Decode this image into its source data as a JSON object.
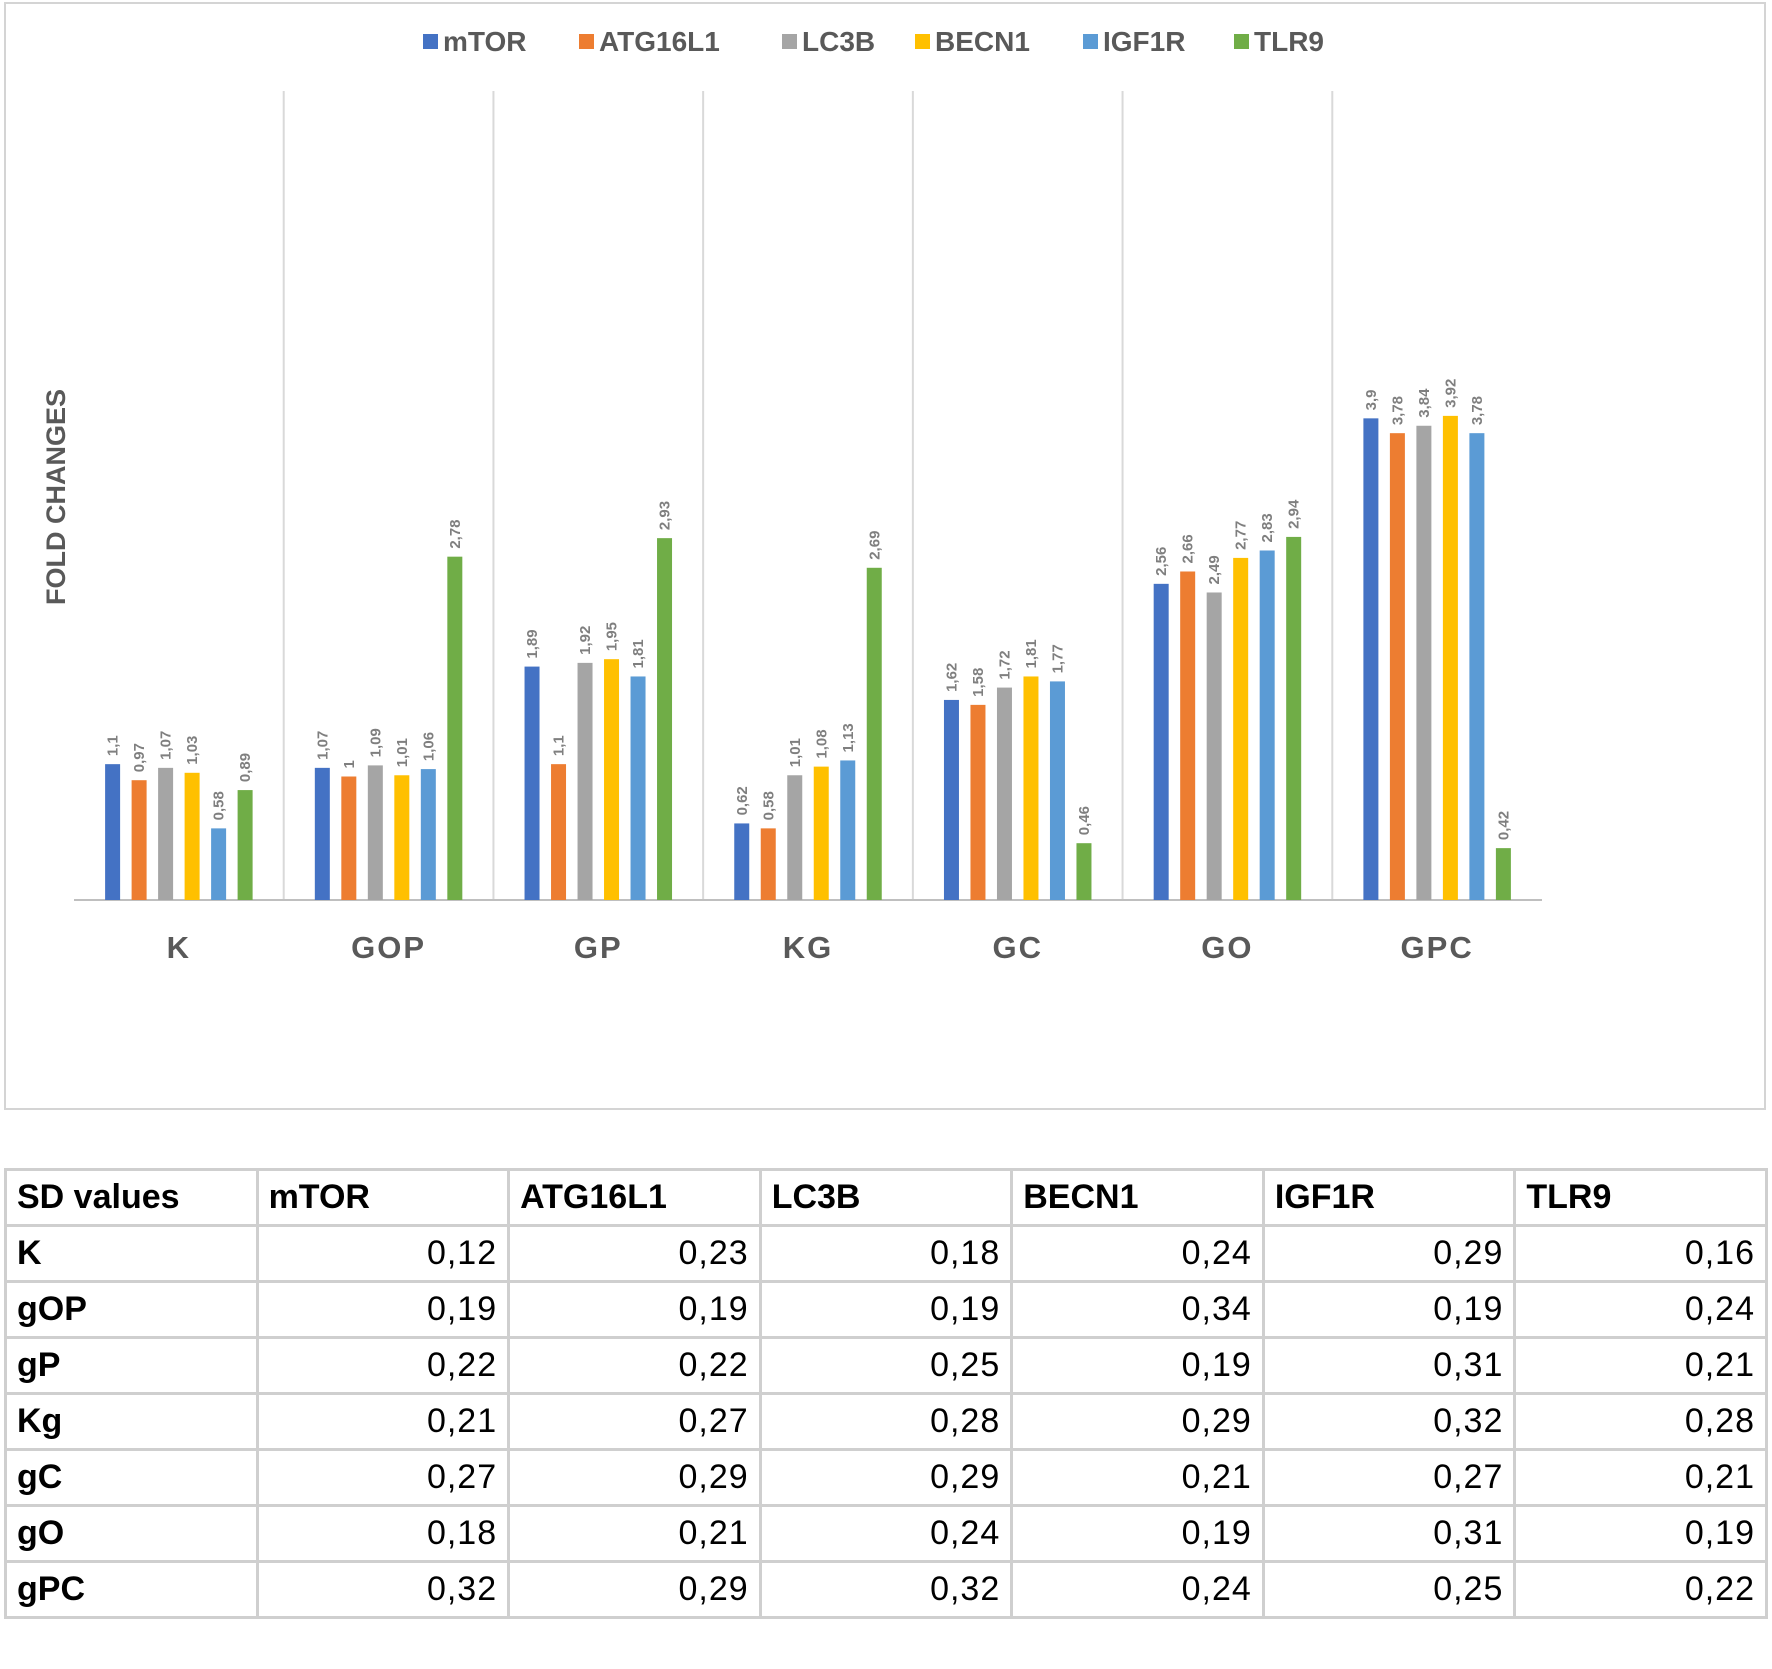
{
  "chart_data": {
    "type": "bar",
    "title": "",
    "xlabel": "",
    "ylabel": "FOLD CHANGES",
    "ylim": [
      0,
      4.6
    ],
    "grid": "vertical separators between categories",
    "legend_position": "top",
    "categories": [
      "K",
      "GOP",
      "GP",
      "KG",
      "GC",
      "GO",
      "GPC"
    ],
    "series": [
      {
        "name": "mTOR",
        "color": "#4472c4",
        "values": [
          1.1,
          1.07,
          1.89,
          0.62,
          1.62,
          2.56,
          3.9
        ],
        "labels": [
          "1,1",
          "1,07",
          "1,89",
          "0,62",
          "1,62",
          "2,56",
          "3,9"
        ]
      },
      {
        "name": "ATG16L1",
        "color": "#ed7d31",
        "values": [
          0.97,
          1,
          1.1,
          0.58,
          1.58,
          2.66,
          3.78
        ],
        "labels": [
          "0,97",
          "1",
          "1,1",
          "0,58",
          "1,58",
          "2,66",
          "3,78"
        ]
      },
      {
        "name": "LC3B",
        "color": "#a5a5a5",
        "values": [
          1.07,
          1.09,
          1.92,
          1.01,
          1.72,
          2.49,
          3.84
        ],
        "labels": [
          "1,07",
          "1,09",
          "1,92",
          "1,01",
          "1,72",
          "2,49",
          "3,84"
        ]
      },
      {
        "name": "BECN1",
        "color": "#ffc000",
        "values": [
          1.03,
          1.01,
          1.95,
          1.08,
          1.81,
          2.77,
          3.92
        ],
        "labels": [
          "1,03",
          "1,01",
          "1,95",
          "1,08",
          "1,81",
          "2,77",
          "3,92"
        ]
      },
      {
        "name": "IGF1R",
        "color": "#5b9bd5",
        "values": [
          0.58,
          1.06,
          1.81,
          1.13,
          1.77,
          2.83,
          3.78
        ],
        "labels": [
          "0,58",
          "1,06",
          "1,81",
          "1,13",
          "1,77",
          "2,83",
          "3,78"
        ]
      },
      {
        "name": "TLR9",
        "color": "#70ad47",
        "values": [
          0.89,
          2.78,
          2.93,
          2.69,
          0.46,
          2.94,
          0.42
        ],
        "labels": [
          "0,89",
          "2,78",
          "2,93",
          "2,69",
          "0,46",
          "2,94",
          "0,42"
        ]
      }
    ]
  },
  "sd_table": {
    "header": [
      "SD values",
      "mTOR",
      "ATG16L1",
      "LC3B",
      "BECN1",
      "IGF1R",
      "TLR9"
    ],
    "rows": [
      {
        "label": "K",
        "values": [
          "0,12",
          "0,23",
          "0,18",
          "0,24",
          "0,29",
          "0,16"
        ]
      },
      {
        "label": "gOP",
        "values": [
          "0,19",
          "0,19",
          "0,19",
          "0,34",
          "0,19",
          "0,24"
        ]
      },
      {
        "label": "gP",
        "values": [
          "0,22",
          "0,22",
          "0,25",
          "0,19",
          "0,31",
          "0,21"
        ]
      },
      {
        "label": "Kg",
        "values": [
          "0,21",
          "0,27",
          "0,28",
          "0,29",
          "0,32",
          "0,28"
        ]
      },
      {
        "label": "gC",
        "values": [
          "0,27",
          "0,29",
          "0,29",
          "0,21",
          "0,27",
          "0,21"
        ]
      },
      {
        "label": "gO",
        "values": [
          "0,18",
          "0,21",
          "0,24",
          "0,19",
          "0,31",
          "0,19"
        ]
      },
      {
        "label": "gPC",
        "values": [
          "0,32",
          "0,29",
          "0,32",
          "0,24",
          "0,25",
          "0,22"
        ]
      }
    ]
  }
}
